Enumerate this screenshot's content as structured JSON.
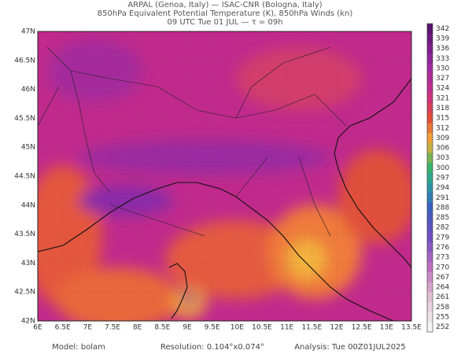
{
  "header": {
    "line1": "ARPAL (Genoa, Italy)  —  ISAC-CNR (Bologna, Italy)",
    "line2": "850hPa Equivalent Potential Temperature (K), 850hPa Winds (kn)",
    "line3": "09 UTC Tue 01 JUL  —  τ = 09h"
  },
  "map": {
    "lat_labels": [
      "47N",
      "46.5N",
      "46N",
      "45.5N",
      "45N",
      "44.5N",
      "44N",
      "43.5N",
      "43N",
      "42.5N",
      "42N"
    ],
    "lon_labels": [
      "6E",
      "6.5E",
      "7E",
      "7.5E",
      "8E",
      "8.5E",
      "9E",
      "9.5E",
      "10E",
      "10.5E",
      "11E",
      "11.5E",
      "12E",
      "12.5E",
      "13E",
      "13.5E"
    ]
  },
  "colorbar": {
    "levels": [
      "342",
      "339",
      "336",
      "333",
      "330",
      "327",
      "324",
      "321",
      "318",
      "315",
      "312",
      "309",
      "306",
      "303",
      "300",
      "297",
      "294",
      "291",
      "288",
      "285",
      "282",
      "279",
      "276",
      "273",
      "270",
      "267",
      "264",
      "261",
      "258",
      "255",
      "252"
    ]
  },
  "footer": {
    "model": "Model: bolam",
    "resolution": "Resolution: 0.104°x0.074°",
    "analysis": "Analysis: Tue 00Z01JUL2025"
  }
}
